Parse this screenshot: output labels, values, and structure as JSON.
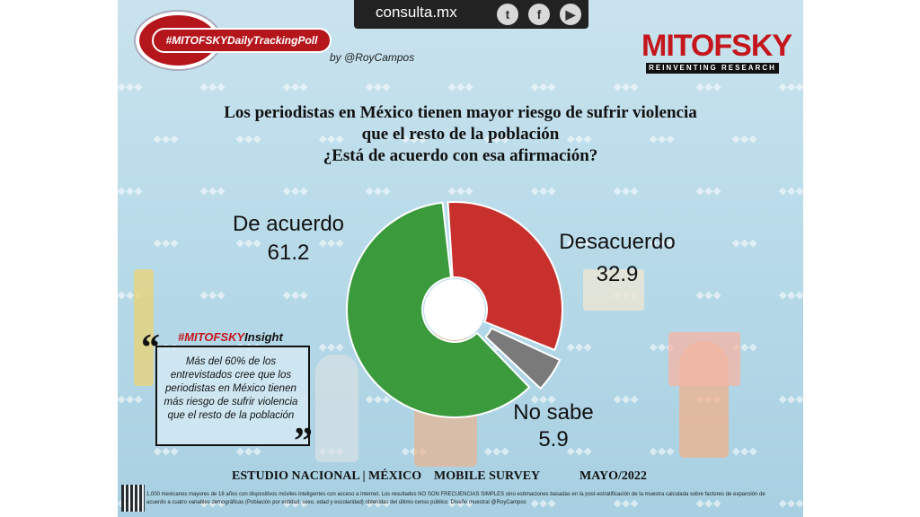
{
  "header": {
    "site": "consulta.mx",
    "social": [
      "twitter-icon",
      "facebook-icon",
      "youtube-icon"
    ],
    "hashtag": "#MITOFSKYDailyTrackingPoll",
    "byline": "by @RoyCampos",
    "brand": "MITOFSKY",
    "brand_tagline": "REINVENTING RESEARCH"
  },
  "question": {
    "line1": "Los periodistas en México tienen mayor riesgo de sufrir violencia",
    "line2": "que el resto de la población",
    "line3": "¿Está de acuerdo con esa afirmación?"
  },
  "chart_data": {
    "type": "pie",
    "style": "donut",
    "categories": [
      "De acuerdo",
      "Desacuerdo",
      "No sabe"
    ],
    "values": [
      61.2,
      32.9,
      5.9
    ],
    "colors": [
      "#3a9a3c",
      "#c7302c",
      "#7a7a7a"
    ],
    "labels": {
      "de_acuerdo": {
        "name": "De acuerdo",
        "value": "61.2"
      },
      "desacuerdo": {
        "name": "Desacuerdo",
        "value": "32.9"
      },
      "no_sabe": {
        "name": "No sabe",
        "value": "5.9"
      }
    }
  },
  "insight": {
    "title_red": "#MITOFSKY",
    "title_black": "Insight",
    "text": "Más del 60% de los entrevistados cree que los periodistas en México tienen más riesgo de sufrir violencia que el resto de la población"
  },
  "footer": {
    "study": "ESTUDIO NACIONAL | MÉXICO",
    "mode": "MOBILE SURVEY",
    "date": "MAYO/2022",
    "fine_print": "1,000 mexicanos mayores de 18 años con dispositivos móviles inteligentes con acceso a internet. Los resultados NO SON FRECUENCIAS SIMPLES sino estimaciones basadas en la post-estratificación de la muestra calculada sobre factores de expansión de acuerdo a cuatro variables demográficas (Población por entidad, sexo, edad y escolaridad) obtenidas del último censo público. Diseño muestral @RoyCampos"
  }
}
